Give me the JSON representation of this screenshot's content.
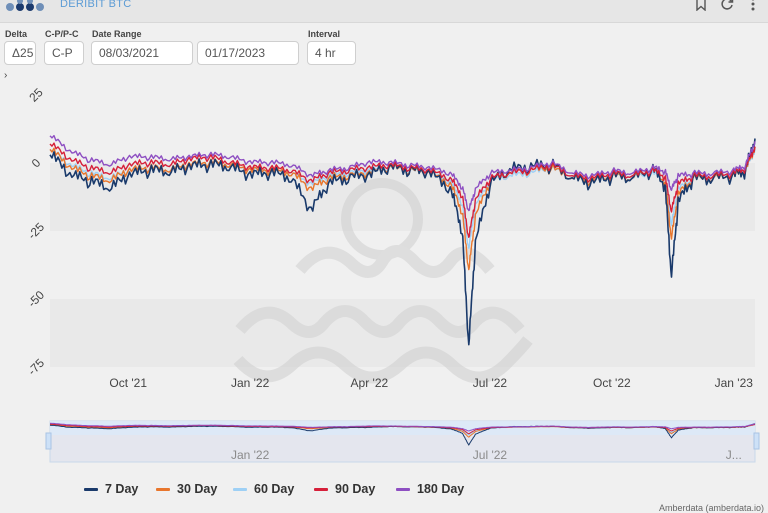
{
  "header": {
    "brand": "DERIBIT BTC"
  },
  "controls": {
    "delta_label": "Delta",
    "delta_value": "Δ25",
    "cpc_label": "C-P/P-C",
    "cpc_value": "C-P",
    "date_label": "Date Range",
    "date_start": "08/03/2021",
    "date_end": "01/17/2023",
    "interval_label": "Interval",
    "interval_value": "4 hr"
  },
  "colors": {
    "s7": "#1a3a6b",
    "s30": "#e8762d",
    "s60": "#9ed0f5",
    "s90": "#d6203a",
    "s180": "#8e4fc2"
  },
  "chart_data": {
    "type": "line",
    "x_range": [
      "2021-08-03",
      "2023-01-17"
    ],
    "y_ticks": [
      "25",
      "0",
      "-25",
      "-50",
      "-75"
    ],
    "ylim": [
      -75,
      25
    ],
    "x_ticks": [
      "Oct '21",
      "Jan '22",
      "Apr '22",
      "Jul '22",
      "Oct '22",
      "Jan '23"
    ],
    "navigator_ticks": [
      "Jan '22",
      "Jul '22",
      "J..."
    ],
    "legend": [
      "7 Day",
      "30 Day",
      "60 Day",
      "90 Day",
      "180 Day"
    ],
    "x": [
      "2021-08-03",
      "2021-08-18",
      "2021-09-02",
      "2021-09-17",
      "2021-10-02",
      "2021-10-17",
      "2021-11-01",
      "2021-11-16",
      "2021-12-01",
      "2021-12-16",
      "2022-01-01",
      "2022-01-16",
      "2022-02-01",
      "2022-02-16",
      "2022-03-01",
      "2022-03-16",
      "2022-04-01",
      "2022-04-16",
      "2022-05-01",
      "2022-05-16",
      "2022-06-01",
      "2022-06-10",
      "2022-06-15",
      "2022-06-20",
      "2022-07-01",
      "2022-07-16",
      "2022-08-01",
      "2022-08-16",
      "2022-09-01",
      "2022-09-16",
      "2022-10-01",
      "2022-10-16",
      "2022-11-01",
      "2022-11-10",
      "2022-11-15",
      "2022-11-20",
      "2022-12-01",
      "2022-12-16",
      "2023-01-01",
      "2023-01-10",
      "2023-01-17"
    ],
    "series": [
      {
        "name": "7 Day",
        "values": [
          3,
          -5,
          -7,
          -10,
          -5,
          -3,
          -4,
          -2,
          -1,
          -2,
          -5,
          -4,
          -6,
          -18,
          -8,
          -6,
          -5,
          -2,
          -3,
          -4,
          -10,
          -25,
          -68,
          -30,
          -8,
          -3,
          -2,
          -1,
          -6,
          -8,
          -5,
          -6,
          -3,
          -8,
          -42,
          -15,
          -6,
          -6,
          -5,
          -3,
          9
        ]
      },
      {
        "name": "30 Day",
        "values": [
          5,
          -2,
          -5,
          -7,
          -3,
          -2,
          -3,
          -1,
          0,
          -1,
          -3,
          -3,
          -4,
          -10,
          -6,
          -5,
          -4,
          -2,
          -3,
          -4,
          -8,
          -18,
          -40,
          -20,
          -7,
          -4,
          -3,
          -2,
          -6,
          -7,
          -5,
          -6,
          -3,
          -7,
          -28,
          -12,
          -6,
          -6,
          -5,
          -3,
          6
        ]
      },
      {
        "name": "60 Day",
        "values": [
          5,
          -1,
          -4,
          -6,
          -3,
          -2,
          -3,
          -1,
          0,
          -1,
          -3,
          -3,
          -4,
          -8,
          -5,
          -4,
          -3,
          -2,
          -3,
          -4,
          -7,
          -15,
          -32,
          -16,
          -7,
          -5,
          -4,
          -2,
          -6,
          -7,
          -5,
          -6,
          -4,
          -7,
          -23,
          -10,
          -6,
          -6,
          -5,
          -3,
          5
        ]
      },
      {
        "name": "90 Day",
        "values": [
          7,
          1,
          -2,
          -4,
          -1,
          0,
          -1,
          1,
          2,
          0,
          -2,
          -2,
          -3,
          -7,
          -4,
          -3,
          -2,
          -1,
          -2,
          -3,
          -6,
          -12,
          -28,
          -14,
          -6,
          -4,
          -3,
          -1,
          -5,
          -6,
          -4,
          -5,
          -3,
          -5,
          -18,
          -8,
          -5,
          -5,
          -4,
          -2,
          6
        ]
      },
      {
        "name": "180 Day",
        "values": [
          10,
          4,
          1,
          -1,
          2,
          2,
          1,
          2,
          3,
          2,
          0,
          0,
          -1,
          -5,
          -3,
          -2,
          0,
          0,
          -1,
          -2,
          -4,
          -9,
          -18,
          -10,
          -4,
          -3,
          -2,
          0,
          -4,
          -5,
          -3,
          -4,
          -2,
          -3,
          -10,
          -5,
          -4,
          -4,
          -3,
          -1,
          8
        ]
      }
    ]
  },
  "credit": "Amberdata (amberdata.io)"
}
